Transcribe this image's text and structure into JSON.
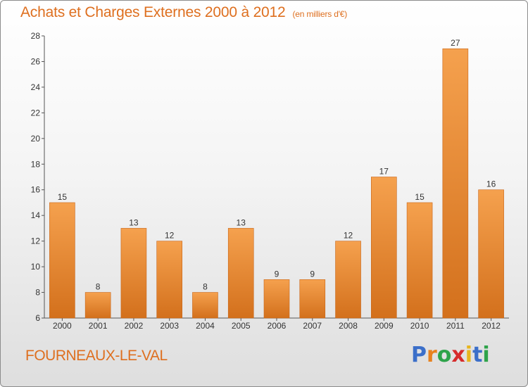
{
  "header": {
    "title": "Achats et Charges Externes 2000 à 2012",
    "unit": "(en milliers d'€)"
  },
  "footer": {
    "commune": "FOURNEAUX-LE-VAL",
    "brand": {
      "letters": [
        "P",
        "r",
        "o",
        "x",
        "i",
        "t",
        "i"
      ],
      "colors": [
        "#3b6fc9",
        "#e8821e",
        "#2ea34a",
        "#d62b2b",
        "#e8b51e",
        "#3b6fc9",
        "#2ea34a"
      ]
    }
  },
  "chart_data": {
    "type": "bar",
    "title": "Achats et Charges Externes 2000 à 2012",
    "subtitle": "(en milliers d'€)",
    "xlabel": "",
    "ylabel": "",
    "categories": [
      "2000",
      "2001",
      "2002",
      "2003",
      "2004",
      "2005",
      "2006",
      "2007",
      "2008",
      "2009",
      "2010",
      "2011",
      "2012"
    ],
    "values": [
      15,
      8,
      13,
      12,
      8,
      13,
      9,
      9,
      12,
      17,
      15,
      27,
      16
    ],
    "ylim": [
      6,
      28
    ],
    "yticks": [
      6,
      8,
      10,
      12,
      14,
      16,
      18,
      20,
      22,
      24,
      26,
      28
    ],
    "bar_color": "#ef8c31",
    "grid": false,
    "legend": "none"
  }
}
